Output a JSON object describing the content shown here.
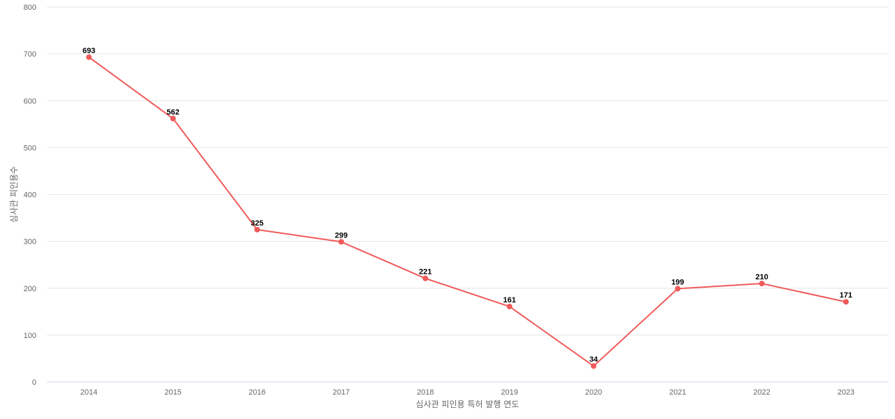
{
  "chart_data": {
    "type": "line",
    "title": "",
    "xlabel": "심사관 피인용 특허 발행 연도",
    "ylabel": "심사관 피인용수",
    "categories": [
      "2014",
      "2015",
      "2016",
      "2017",
      "2018",
      "2019",
      "2020",
      "2021",
      "2022",
      "2023"
    ],
    "series": [
      {
        "values": [
          693,
          562,
          325,
          299,
          221,
          161,
          34,
          199,
          210,
          171
        ],
        "color": "#f05a5a"
      }
    ],
    "ylim": [
      0,
      800
    ],
    "yticks": [
      0,
      100,
      200,
      300,
      400,
      500,
      600,
      700,
      800
    ],
    "grid": true,
    "legend": "none",
    "data_labels": true
  }
}
